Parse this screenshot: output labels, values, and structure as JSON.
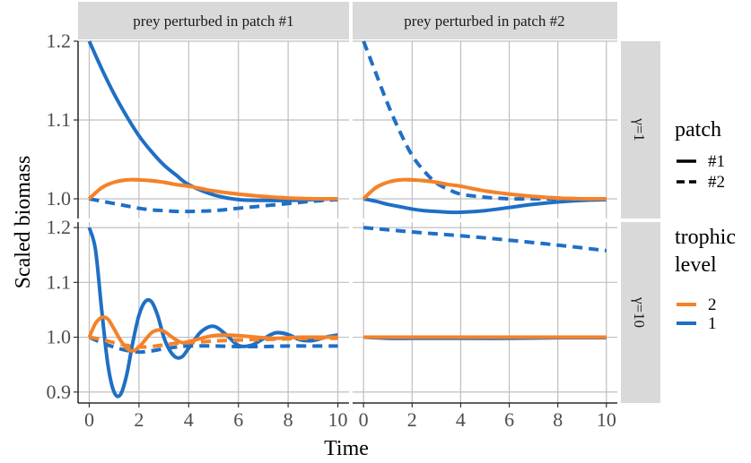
{
  "chart_data": {
    "type": "line",
    "facet_columns": [
      "prey perturbed in patch #1",
      "prey perturbed in patch #2"
    ],
    "facet_rows": [
      "γ=1",
      "γ=10"
    ],
    "xlabel": "Time",
    "ylabel": "Scaled biomass",
    "xlim": [
      0,
      10
    ],
    "x_ticks": [
      0,
      2,
      4,
      6,
      8,
      10
    ],
    "ylim_row1": [
      0.975,
      1.2
    ],
    "yticks_row1": [
      1.0,
      1.1,
      1.2
    ],
    "ylim_row2": [
      0.88,
      1.21
    ],
    "yticks_row2": [
      0.9,
      1.0,
      1.1,
      1.2
    ],
    "grid": true,
    "legend": {
      "placement": "right",
      "patch_title": "patch",
      "patch_entries": [
        {
          "label": "#1",
          "dash": "solid"
        },
        {
          "label": "#2",
          "dash": "dashed"
        }
      ],
      "trophic_title_line1": "trophic",
      "trophic_title_line2": "level",
      "trophic_entries": [
        {
          "label": "2",
          "color": "#f4822a"
        },
        {
          "label": "1",
          "color": "#1f6fc5"
        }
      ]
    },
    "panels": [
      {
        "row": 0,
        "col": 0,
        "series": [
          {
            "trophic": "1",
            "patch": "#1",
            "x": [
              0,
              0.5,
              1,
              1.5,
              2,
              2.5,
              3,
              3.5,
              4,
              5,
              6,
              7,
              8,
              9,
              10
            ],
            "y": [
              1.2,
              1.165,
              1.133,
              1.105,
              1.08,
              1.06,
              1.043,
              1.03,
              1.018,
              1.005,
              0.999,
              0.998,
              0.998,
              0.999,
              1.0
            ]
          },
          {
            "trophic": "1",
            "patch": "#2",
            "x": [
              0,
              0.5,
              1,
              1.5,
              2,
              2.5,
              3,
              3.5,
              4,
              5,
              6,
              7,
              8,
              9,
              10
            ],
            "y": [
              1.0,
              0.997,
              0.994,
              0.991,
              0.988,
              0.986,
              0.985,
              0.984,
              0.984,
              0.985,
              0.988,
              0.991,
              0.994,
              0.997,
              0.999
            ]
          },
          {
            "trophic": "2",
            "patch": "#1",
            "x": [
              0,
              0.5,
              1,
              1.5,
              2,
              2.5,
              3,
              3.5,
              4,
              5,
              6,
              7,
              8,
              9,
              10
            ],
            "y": [
              1.0,
              1.014,
              1.021,
              1.024,
              1.024,
              1.023,
              1.021,
              1.018,
              1.016,
              1.01,
              1.006,
              1.003,
              1.001,
              1.0,
              1.0
            ]
          },
          {
            "trophic": "2",
            "patch": "#2",
            "x": [
              0,
              0.5,
              1,
              1.5,
              2,
              2.5,
              3,
              3.5,
              4,
              5,
              6,
              7,
              8,
              9,
              10
            ],
            "y": [
              1.0,
              1.014,
              1.021,
              1.024,
              1.024,
              1.023,
              1.021,
              1.018,
              1.016,
              1.01,
              1.006,
              1.003,
              1.001,
              1.0,
              1.0
            ]
          }
        ]
      },
      {
        "row": 0,
        "col": 1,
        "series": [
          {
            "trophic": "1",
            "patch": "#2",
            "x": [
              0,
              0.5,
              1,
              1.5,
              2,
              2.5,
              3,
              3.5,
              4,
              5,
              6,
              7,
              8,
              9,
              10
            ],
            "y": [
              1.2,
              1.16,
              1.12,
              1.085,
              1.055,
              1.035,
              1.02,
              1.012,
              1.006,
              1.002,
              1.0,
              1.0,
              1.0,
              1.0,
              1.0
            ]
          },
          {
            "trophic": "1",
            "patch": "#1",
            "x": [
              0,
              0.5,
              1,
              1.5,
              2,
              2.5,
              3,
              3.5,
              4,
              5,
              6,
              7,
              8,
              9,
              10
            ],
            "y": [
              1.0,
              0.997,
              0.993,
              0.99,
              0.987,
              0.985,
              0.984,
              0.983,
              0.983,
              0.985,
              0.989,
              0.993,
              0.996,
              0.998,
              0.999
            ]
          },
          {
            "trophic": "2",
            "patch": "#1",
            "x": [
              0,
              0.5,
              1,
              1.5,
              2,
              2.5,
              3,
              3.5,
              4,
              5,
              6,
              7,
              8,
              9,
              10
            ],
            "y": [
              1.0,
              1.014,
              1.021,
              1.024,
              1.024,
              1.023,
              1.021,
              1.018,
              1.016,
              1.01,
              1.006,
              1.003,
              1.001,
              1.0,
              1.0
            ]
          },
          {
            "trophic": "2",
            "patch": "#2",
            "x": [
              0,
              0.5,
              1,
              1.5,
              2,
              2.5,
              3,
              3.5,
              4,
              5,
              6,
              7,
              8,
              9,
              10
            ],
            "y": [
              1.0,
              1.014,
              1.021,
              1.024,
              1.024,
              1.023,
              1.021,
              1.018,
              1.016,
              1.01,
              1.006,
              1.003,
              1.001,
              1.0,
              1.0
            ]
          }
        ]
      },
      {
        "row": 1,
        "col": 0,
        "series": [
          {
            "trophic": "1",
            "patch": "#1",
            "x": [
              0,
              0.25,
              0.5,
              0.75,
              1,
              1.25,
              1.5,
              1.75,
              2,
              2.25,
              2.5,
              2.75,
              3,
              3.25,
              3.5,
              3.75,
              4,
              4.5,
              5,
              5.5,
              6,
              6.5,
              7,
              7.5,
              8,
              8.5,
              9,
              9.5,
              10
            ],
            "y": [
              1.2,
              1.16,
              1.05,
              0.95,
              0.9,
              0.895,
              0.93,
              0.99,
              1.04,
              1.065,
              1.065,
              1.04,
              1.0,
              0.975,
              0.963,
              0.965,
              0.98,
              1.01,
              1.02,
              1.005,
              0.985,
              0.985,
              0.997,
              1.008,
              1.005,
              0.995,
              0.994,
              1.0,
              1.004
            ]
          },
          {
            "trophic": "1",
            "patch": "#2",
            "x": [
              0,
              0.5,
              1,
              1.5,
              2,
              2.5,
              3,
              3.5,
              4,
              5,
              6,
              7,
              8,
              9,
              10
            ],
            "y": [
              1.0,
              0.99,
              0.982,
              0.976,
              0.973,
              0.975,
              0.979,
              0.982,
              0.984,
              0.984,
              0.983,
              0.983,
              0.984,
              0.984,
              0.984
            ]
          },
          {
            "trophic": "2",
            "patch": "#1",
            "x": [
              0,
              0.25,
              0.5,
              0.75,
              1,
              1.25,
              1.5,
              1.75,
              2,
              2.25,
              2.5,
              2.75,
              3,
              3.25,
              3.5,
              3.75,
              4,
              4.5,
              5,
              5.5,
              6,
              6.5,
              7,
              7.5,
              8,
              8.5,
              9,
              9.5,
              10
            ],
            "y": [
              1.0,
              1.025,
              1.036,
              1.033,
              1.015,
              0.995,
              0.98,
              0.975,
              0.982,
              0.995,
              1.008,
              1.013,
              1.011,
              1.003,
              0.995,
              0.99,
              0.992,
              0.998,
              1.003,
              1.004,
              1.003,
              1.001,
              0.999,
              0.998,
              0.999,
              1.0,
              1.0,
              1.0,
              1.0
            ]
          },
          {
            "trophic": "2",
            "patch": "#2",
            "x": [
              0,
              0.5,
              1,
              1.5,
              2,
              2.5,
              3,
              3.5,
              4,
              5,
              6,
              7,
              8,
              9,
              10
            ],
            "y": [
              1.0,
              0.996,
              0.99,
              0.985,
              0.982,
              0.983,
              0.986,
              0.989,
              0.99,
              0.993,
              0.995,
              0.996,
              0.997,
              0.998,
              0.998
            ]
          }
        ]
      },
      {
        "row": 1,
        "col": 1,
        "series": [
          {
            "trophic": "1",
            "patch": "#2",
            "x": [
              0,
              2,
              4,
              6,
              8,
              10
            ],
            "y": [
              1.2,
              1.192,
              1.185,
              1.177,
              1.168,
              1.158
            ]
          },
          {
            "trophic": "1",
            "patch": "#1",
            "x": [
              0,
              1,
              2,
              3,
              4,
              6,
              8,
              10
            ],
            "y": [
              1.0,
              0.998,
              0.998,
              0.998,
              0.998,
              0.998,
              0.999,
              0.999
            ]
          },
          {
            "trophic": "2",
            "patch": "#1",
            "x": [
              0,
              2,
              4,
              6,
              8,
              10
            ],
            "y": [
              1.0,
              1.0,
              1.0,
              1.0,
              1.0,
              1.0
            ]
          },
          {
            "trophic": "2",
            "patch": "#2",
            "x": [
              0,
              2,
              4,
              6,
              8,
              10
            ],
            "y": [
              1.0,
              1.0,
              1.0,
              1.0,
              1.0,
              1.0
            ]
          }
        ]
      }
    ]
  }
}
